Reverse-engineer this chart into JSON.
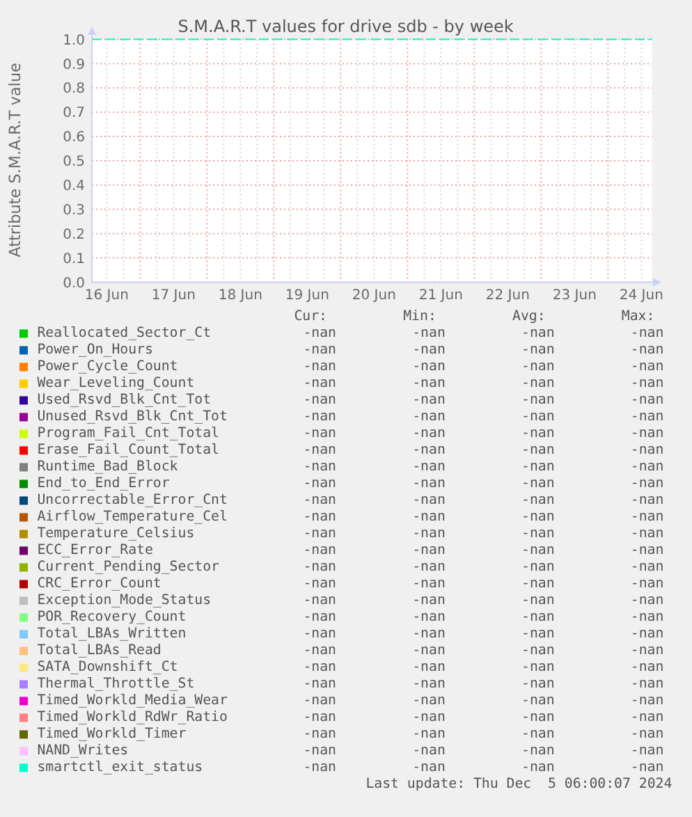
{
  "chart_data": {
    "type": "line",
    "title": "S.M.A.R.T values for drive sdb - by week",
    "ylabel": "Attribute S.M.A.R.T value",
    "categories": [
      "16 Jun",
      "17 Jun",
      "18 Jun",
      "19 Jun",
      "20 Jun",
      "21 Jun",
      "22 Jun",
      "23 Jun",
      "24 Jun"
    ],
    "ylim": [
      0,
      1
    ],
    "yticks": [
      {
        "value": 0,
        "label": "0.0"
      },
      0.1,
      0.2,
      0.3,
      0.4,
      0.5,
      0.6,
      0.7,
      0.8,
      0.9,
      {
        "value": 1,
        "label": "1.0"
      }
    ],
    "grid": true,
    "legend": "bottom",
    "ref_lines": [
      {
        "axis": "y",
        "value": 1,
        "color": "#00ffcc",
        "line_style": "dashed"
      }
    ],
    "series": [
      {
        "name": "Reallocated_Sector_Ct",
        "color": "#00cc00",
        "values": [
          null,
          null,
          null,
          null,
          null,
          null,
          null,
          null,
          null
        ]
      },
      {
        "name": "Power_On_Hours",
        "color": "#0066b3",
        "values": [
          null,
          null,
          null,
          null,
          null,
          null,
          null,
          null,
          null
        ]
      },
      {
        "name": "Power_Cycle_Count",
        "color": "#ff8000",
        "values": [
          null,
          null,
          null,
          null,
          null,
          null,
          null,
          null,
          null
        ]
      },
      {
        "name": "Wear_Leveling_Count",
        "color": "#ffcc00",
        "values": [
          null,
          null,
          null,
          null,
          null,
          null,
          null,
          null,
          null
        ]
      },
      {
        "name": "Used_Rsvd_Blk_Cnt_Tot",
        "color": "#330099",
        "values": [
          null,
          null,
          null,
          null,
          null,
          null,
          null,
          null,
          null
        ]
      },
      {
        "name": "Unused_Rsvd_Blk_Cnt_Tot",
        "color": "#990099",
        "values": [
          null,
          null,
          null,
          null,
          null,
          null,
          null,
          null,
          null
        ]
      },
      {
        "name": "Program_Fail_Cnt_Total",
        "color": "#ccff00",
        "values": [
          null,
          null,
          null,
          null,
          null,
          null,
          null,
          null,
          null
        ]
      },
      {
        "name": "Erase_Fail_Count_Total",
        "color": "#ff0000",
        "values": [
          null,
          null,
          null,
          null,
          null,
          null,
          null,
          null,
          null
        ]
      },
      {
        "name": "Runtime_Bad_Block",
        "color": "#808080",
        "values": [
          null,
          null,
          null,
          null,
          null,
          null,
          null,
          null,
          null
        ]
      },
      {
        "name": "End_to_End_Error",
        "color": "#008f00",
        "values": [
          null,
          null,
          null,
          null,
          null,
          null,
          null,
          null,
          null
        ]
      },
      {
        "name": "Uncorrectable_Error_Cnt",
        "color": "#00487d",
        "values": [
          null,
          null,
          null,
          null,
          null,
          null,
          null,
          null,
          null
        ]
      },
      {
        "name": "Airflow_Temperature_Cel",
        "color": "#b35a00",
        "values": [
          null,
          null,
          null,
          null,
          null,
          null,
          null,
          null,
          null
        ]
      },
      {
        "name": "Temperature_Celsius",
        "color": "#b38f00",
        "values": [
          null,
          null,
          null,
          null,
          null,
          null,
          null,
          null,
          null
        ]
      },
      {
        "name": "ECC_Error_Rate",
        "color": "#6b006b",
        "values": [
          null,
          null,
          null,
          null,
          null,
          null,
          null,
          null,
          null
        ]
      },
      {
        "name": "Current_Pending_Sector",
        "color": "#8fb300",
        "values": [
          null,
          null,
          null,
          null,
          null,
          null,
          null,
          null,
          null
        ]
      },
      {
        "name": "CRC_Error_Count",
        "color": "#b30000",
        "values": [
          null,
          null,
          null,
          null,
          null,
          null,
          null,
          null,
          null
        ]
      },
      {
        "name": "Exception_Mode_Status",
        "color": "#bebebe",
        "values": [
          null,
          null,
          null,
          null,
          null,
          null,
          null,
          null,
          null
        ]
      },
      {
        "name": "POR_Recovery_Count",
        "color": "#80ff80",
        "values": [
          null,
          null,
          null,
          null,
          null,
          null,
          null,
          null,
          null
        ]
      },
      {
        "name": "Total_LBAs_Written",
        "color": "#80c9ff",
        "values": [
          null,
          null,
          null,
          null,
          null,
          null,
          null,
          null,
          null
        ]
      },
      {
        "name": "Total_LBAs_Read",
        "color": "#ffc080",
        "values": [
          null,
          null,
          null,
          null,
          null,
          null,
          null,
          null,
          null
        ]
      },
      {
        "name": "SATA_Downshift_Ct",
        "color": "#ffe680",
        "values": [
          null,
          null,
          null,
          null,
          null,
          null,
          null,
          null,
          null
        ]
      },
      {
        "name": "Thermal_Throttle_St",
        "color": "#aa80ff",
        "values": [
          null,
          null,
          null,
          null,
          null,
          null,
          null,
          null,
          null
        ]
      },
      {
        "name": "Timed_Workld_Media_Wear",
        "color": "#ee00cc",
        "values": [
          null,
          null,
          null,
          null,
          null,
          null,
          null,
          null,
          null
        ]
      },
      {
        "name": "Timed_Workld_RdWr_Ratio",
        "color": "#ff8080",
        "values": [
          null,
          null,
          null,
          null,
          null,
          null,
          null,
          null,
          null
        ]
      },
      {
        "name": "Timed_Workld_Timer",
        "color": "#666600",
        "values": [
          null,
          null,
          null,
          null,
          null,
          null,
          null,
          null,
          null
        ]
      },
      {
        "name": "NAND_Writes",
        "color": "#ffbfff",
        "values": [
          null,
          null,
          null,
          null,
          null,
          null,
          null,
          null,
          null
        ]
      },
      {
        "name": "smartctl_exit_status",
        "color": "#00ffcc",
        "values": [
          null,
          null,
          null,
          null,
          null,
          null,
          null,
          null,
          null
        ]
      }
    ],
    "annotations": [
      "Cur:",
      "Min:",
      "Avg:",
      "Max:",
      "-nan",
      "-nan",
      "-nan",
      "-nan",
      "-nan",
      "-nan",
      "-nan",
      "-nan",
      "-nan",
      "-nan",
      "-nan",
      "-nan",
      "-nan",
      "-nan",
      "-nan",
      "-nan",
      "-nan",
      "-nan",
      "-nan",
      "-nan",
      "-nan",
      "-nan",
      "-nan",
      "-nan",
      "-nan",
      "-nan",
      "-nan",
      "-nan",
      "-nan",
      "-nan",
      "-nan",
      "-nan",
      "-nan",
      "-nan",
      "-nan",
      "-nan",
      "-nan",
      "-nan",
      "-nan",
      "-nan",
      "-nan",
      "-nan",
      "-nan",
      "-nan",
      "-nan",
      "-nan",
      "-nan",
      "-nan",
      "-nan",
      "-nan",
      "-nan",
      "-nan",
      "-nan",
      "-nan",
      "-nan",
      "-nan",
      "-nan",
      "-nan",
      "-nan",
      "-nan",
      "-nan",
      "-nan",
      "-nan",
      "-nan",
      "-nan",
      "-nan",
      "-nan",
      "-nan",
      "-nan",
      "-nan",
      "-nan",
      "-nan",
      "-nan",
      "-nan",
      "-nan",
      "-nan",
      "-nan",
      "-nan",
      "-nan",
      "-nan",
      "-nan",
      "-nan",
      "-nan",
      "-nan",
      "-nan",
      "-nan",
      "-nan",
      "-nan",
      "-nan",
      "-nan",
      "-nan",
      "-nan",
      "-nan",
      "-nan",
      "-nan",
      "-nan",
      "-nan",
      "-nan",
      "-nan",
      "-nan",
      "-nan",
      "-nan",
      "-nan",
      "-nan",
      "-nan",
      "-nan",
      "-nan",
      "-nan",
      "Last update: Thu Dec  5 06:00:07 2024"
    ]
  }
}
